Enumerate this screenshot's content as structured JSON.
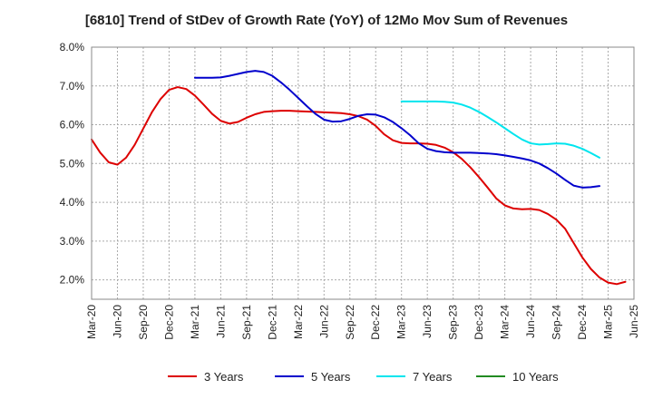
{
  "chart_data": {
    "type": "line",
    "title": "[6810]  Trend of StDev of Growth Rate (YoY) of 12Mo Mov Sum of Revenues",
    "xlabel": "",
    "ylabel": "",
    "ylim": [
      1.5,
      8.0
    ],
    "yticks": [
      2.0,
      3.0,
      4.0,
      5.0,
      6.0,
      7.0,
      8.0
    ],
    "ytick_labels": [
      "2.0%",
      "3.0%",
      "4.0%",
      "5.0%",
      "6.0%",
      "7.0%",
      "8.0%"
    ],
    "x_tick_labels": [
      "Mar-20",
      "Jun-20",
      "Sep-20",
      "Dec-20",
      "Mar-21",
      "Jun-21",
      "Sep-21",
      "Dec-21",
      "Mar-22",
      "Jun-22",
      "Sep-22",
      "Dec-22",
      "Mar-23",
      "Jun-23",
      "Sep-23",
      "Dec-23",
      "Mar-24",
      "Jun-24",
      "Sep-24",
      "Dec-24",
      "Mar-25",
      "Jun-25"
    ],
    "x_start": "Mar-20",
    "grid": true,
    "legend_position": "bottom",
    "series": [
      {
        "name": "3 Years",
        "color": "#dd0000",
        "start_index": 0,
        "values": [
          5.62,
          5.28,
          5.03,
          4.97,
          5.15,
          5.48,
          5.9,
          6.32,
          6.66,
          6.9,
          6.97,
          6.92,
          6.75,
          6.52,
          6.28,
          6.1,
          6.03,
          6.07,
          6.18,
          6.27,
          6.33,
          6.35,
          6.36,
          6.36,
          6.35,
          6.34,
          6.33,
          6.32,
          6.31,
          6.3,
          6.27,
          6.22,
          6.13,
          5.97,
          5.75,
          5.6,
          5.53,
          5.52,
          5.52,
          5.51,
          5.48,
          5.41,
          5.29,
          5.12,
          4.9,
          4.65,
          4.38,
          4.1,
          3.92,
          3.84,
          3.82,
          3.83,
          3.8,
          3.7,
          3.55,
          3.32,
          2.95,
          2.58,
          2.28,
          2.06,
          1.93,
          1.89,
          1.95
        ]
      },
      {
        "name": "5 Years",
        "color": "#0000cc",
        "start_index": 12,
        "values": [
          7.21,
          7.21,
          7.21,
          7.22,
          7.26,
          7.31,
          7.36,
          7.39,
          7.36,
          7.26,
          7.09,
          6.9,
          6.69,
          6.48,
          6.28,
          6.13,
          6.08,
          6.09,
          6.15,
          6.23,
          6.27,
          6.26,
          6.19,
          6.07,
          5.91,
          5.73,
          5.52,
          5.38,
          5.32,
          5.29,
          5.28,
          5.28,
          5.28,
          5.27,
          5.26,
          5.24,
          5.21,
          5.17,
          5.13,
          5.08,
          5.0,
          4.88,
          4.74,
          4.58,
          4.43,
          4.38,
          4.39,
          4.42
        ]
      },
      {
        "name": "7 Years",
        "color": "#00e5ee",
        "start_index": 36,
        "values": [
          6.6,
          6.6,
          6.6,
          6.6,
          6.6,
          6.59,
          6.57,
          6.52,
          6.44,
          6.33,
          6.2,
          6.06,
          5.91,
          5.76,
          5.62,
          5.52,
          5.49,
          5.5,
          5.52,
          5.51,
          5.46,
          5.38,
          5.27,
          5.15
        ]
      },
      {
        "name": "10 Years",
        "color": "#228b22",
        "start_index": 0,
        "values": []
      }
    ]
  }
}
